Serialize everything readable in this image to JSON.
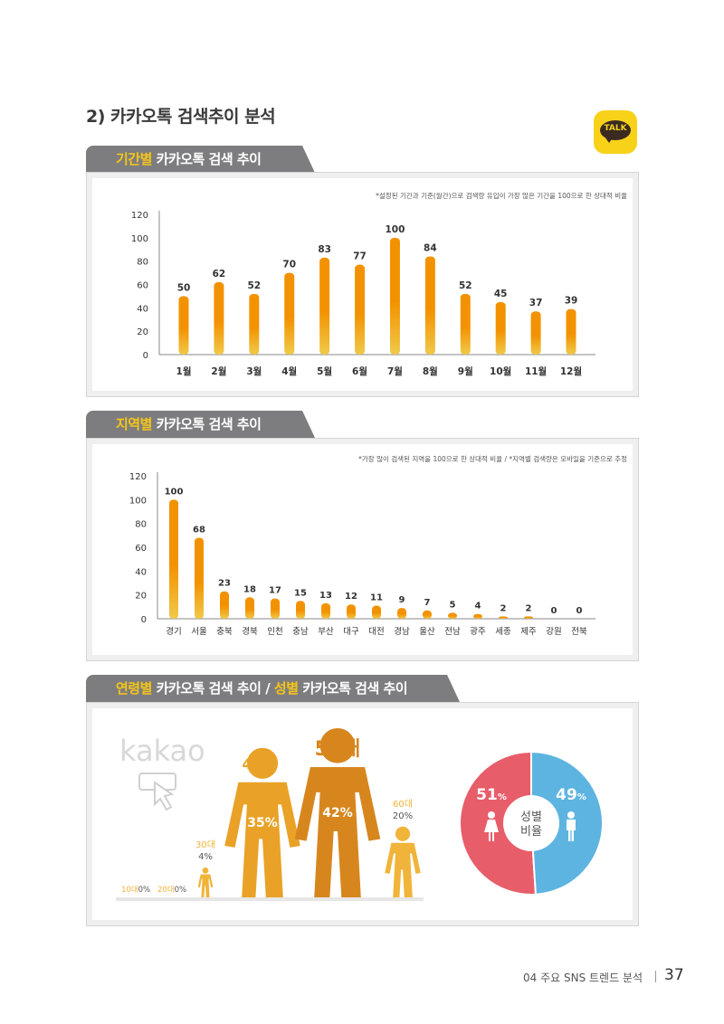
{
  "page_title": "2) 카카오톡 검색추이 분석",
  "talk_icon_label": "TALK",
  "sections": {
    "period": {
      "highlight": "기간별",
      "rest": " 카카오톡 검색 추이",
      "note": "*설정된 기간과 기준(월간)으로 검색량 유입이 가장 많은 기간을 100으로 한 상대적 비율"
    },
    "region": {
      "highlight": "지역별",
      "rest": " 카카오톡 검색 추이",
      "note": "*가장 많이 검색된 지역을 100으로 한 상대적 비율 / *지역별 검색량은 모바일을 기준으로 추정"
    },
    "age_gender": {
      "highlight1": "연령별",
      "rest1": " 카카오톡 검색 추이 / ",
      "highlight2": "성별",
      "rest2": " 카카오톡 검색 추이"
    }
  },
  "kakao_logo": "kakao",
  "chart_data": [
    {
      "type": "bar",
      "title": "기간별 카카오톡 검색 추이",
      "categories": [
        "1월",
        "2월",
        "3월",
        "4월",
        "5월",
        "6월",
        "7월",
        "8월",
        "9월",
        "10월",
        "11월",
        "12월"
      ],
      "values": [
        50,
        62,
        52,
        70,
        83,
        77,
        100,
        84,
        52,
        45,
        37,
        39
      ],
      "ylim": [
        0,
        120
      ],
      "yticks": [
        0,
        20,
        40,
        60,
        80,
        100,
        120
      ]
    },
    {
      "type": "bar",
      "title": "지역별 카카오톡 검색 추이",
      "categories": [
        "경기",
        "서울",
        "충북",
        "경북",
        "인천",
        "충남",
        "부산",
        "대구",
        "대전",
        "경남",
        "울산",
        "전남",
        "광주",
        "세종",
        "제주",
        "강원",
        "전북"
      ],
      "values": [
        100,
        68,
        23,
        18,
        17,
        15,
        13,
        12,
        11,
        9,
        7,
        5,
        4,
        2,
        2,
        0,
        0
      ],
      "ylim": [
        0,
        120
      ],
      "yticks": [
        0,
        20,
        40,
        60,
        80,
        100,
        120
      ]
    },
    {
      "type": "bar",
      "title": "연령별 카카오톡 검색 추이",
      "categories": [
        "10대",
        "20대",
        "30대",
        "40대",
        "50대",
        "60대"
      ],
      "values": [
        0,
        0,
        4,
        35,
        42,
        20
      ],
      "labels": [
        "0%",
        "0%",
        "4%",
        "35%",
        "42%",
        "20%"
      ]
    },
    {
      "type": "pie",
      "title": "성별 카카오톡 검색 추이",
      "categories": [
        "여성",
        "남성"
      ],
      "values": [
        51,
        49
      ],
      "labels": [
        "51%",
        "49%"
      ],
      "colors": [
        "#e85d6a",
        "#5db4e0"
      ],
      "center_label": [
        "성별",
        "비율"
      ]
    }
  ],
  "colors": {
    "bar_top": "#f39200",
    "bar_bottom": "#f0c94a",
    "tab_bg": "#7d7d7f",
    "highlight": "#f5c518",
    "age_40": "#e9a227",
    "age_50": "#d7861e",
    "age_small": "#f0b43a"
  },
  "footer": {
    "text": "04 주요 SNS 트렌드 분석",
    "page": "37"
  }
}
